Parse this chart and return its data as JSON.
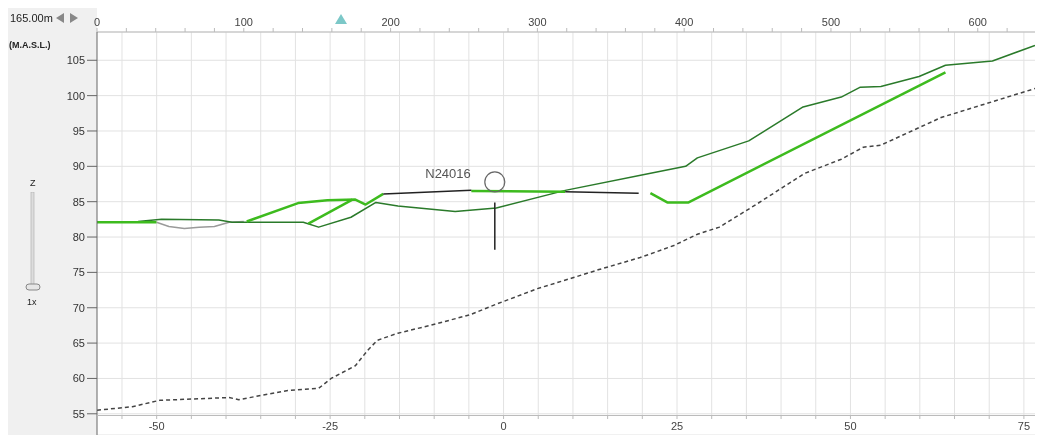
{
  "chart_data": {
    "type": "line",
    "ylabel": "(M.A.S.L.)",
    "xlim": [
      0,
      639
    ],
    "xticks": [
      0,
      {
        "value": 20,
        "label": null
      },
      {
        "value": 40,
        "label": null
      },
      {
        "value": 60,
        "label": null
      },
      {
        "value": 80,
        "label": null
      },
      100,
      {
        "value": 120,
        "label": null
      },
      {
        "value": 140,
        "label": null
      },
      {
        "value": 160,
        "label": null
      },
      {
        "value": 180,
        "label": null
      },
      200,
      {
        "value": 220,
        "label": null
      },
      {
        "value": 240,
        "label": null
      },
      {
        "value": 260,
        "label": null
      },
      {
        "value": 280,
        "label": null
      },
      300,
      {
        "value": 320,
        "label": null
      },
      {
        "value": 340,
        "label": null
      },
      {
        "value": 360,
        "label": null
      },
      {
        "value": 380,
        "label": null
      },
      400,
      {
        "value": 420,
        "label": null
      },
      {
        "value": 440,
        "label": null
      },
      {
        "value": 460,
        "label": null
      },
      {
        "value": 480,
        "label": null
      },
      500,
      {
        "value": 520,
        "label": null
      },
      {
        "value": 540,
        "label": null
      },
      {
        "value": 560,
        "label": null
      },
      {
        "value": 580,
        "label": null
      },
      600,
      {
        "value": 620,
        "label": null
      }
    ],
    "x2lim": [
      -58.6,
      76.6
    ],
    "x2ticks": [
      {
        "value": -55,
        "label": null
      },
      -50,
      {
        "value": -45,
        "label": null
      },
      {
        "value": -40,
        "label": null
      },
      {
        "value": -35,
        "label": null
      },
      {
        "value": -30,
        "label": null
      },
      -25,
      {
        "value": -20,
        "label": null
      },
      {
        "value": -15,
        "label": null
      },
      {
        "value": -10,
        "label": null
      },
      {
        "value": -5,
        "label": null
      },
      0,
      {
        "value": 5,
        "label": null
      },
      {
        "value": 10,
        "label": null
      },
      {
        "value": 15,
        "label": null
      },
      {
        "value": 20,
        "label": null
      },
      25,
      {
        "value": 30,
        "label": null
      },
      {
        "value": 35,
        "label": null
      },
      {
        "value": 40,
        "label": null
      },
      {
        "value": 45,
        "label": null
      },
      50,
      {
        "value": 55,
        "label": null
      },
      {
        "value": 60,
        "label": null
      },
      {
        "value": 65,
        "label": null
      },
      {
        "value": 70,
        "label": null
      },
      75
    ],
    "ylim": [
      52,
      109
    ],
    "yticks": [
      55,
      60,
      65,
      70,
      75,
      80,
      85,
      90,
      95,
      100,
      105
    ],
    "grid": true,
    "marker": "none",
    "annotations": [
      "165.00m",
      "Z",
      "1x",
      {
        "text": "N24016",
        "x": 271,
        "y": 87.8
      }
    ],
    "series": [
      {
        "type": "line",
        "color": "#444444",
        "line_style": "dashed",
        "x": [
          0,
          24,
          42.6,
          90,
          96.6,
          130,
          151,
          159.5,
          176,
          184.5,
          191,
          205,
          227,
          254,
          272,
          300,
          323.6,
          342,
          370,
          393,
          409,
          424,
          449,
          482,
          507,
          522,
          534,
          575,
          639
        ],
        "values": [
          55.5,
          56.0,
          56.9,
          57.3,
          57.0,
          58.3,
          58.6,
          60.0,
          61.8,
          64.0,
          65.4,
          66.4,
          67.5,
          69.0,
          70.5,
          72.7,
          74.2,
          75.4,
          77.1,
          78.8,
          80.4,
          81.4,
          84.6,
          89.0,
          91.0,
          92.7,
          93.0,
          96.9,
          101.0
        ]
      },
      {
        "type": "line",
        "color": "#9a9a9a",
        "line_style": "solid",
        "x": [
          40.5,
          49,
          59.5,
          69.6,
          80,
          90,
          100
        ],
        "values": [
          82.1,
          81.5,
          81.2,
          81.4,
          81.5,
          82.1,
          82.2
        ]
      },
      {
        "type": "line",
        "color": "#2a7a2a",
        "line_style": "solid",
        "x": [
          28,
          44,
          83,
          92,
          140.5,
          151,
          173,
          190,
          205,
          244,
          272,
          319,
          372,
          401,
          409,
          444,
          481,
          507,
          520,
          534,
          560,
          578,
          610,
          639
        ],
        "values": [
          82.2,
          82.5,
          82.4,
          82.1,
          82.1,
          81.4,
          82.8,
          84.9,
          84.4,
          83.6,
          84.1,
          86.6,
          88.8,
          90.0,
          91.2,
          93.6,
          98.4,
          99.8,
          101.2,
          101.3,
          102.7,
          104.3,
          104.9,
          107.1
        ]
      },
      {
        "type": "line",
        "color": "#3dbb1e",
        "line_style": "solid",
        "x": [
          0,
          40.5
        ],
        "values": [
          82.1,
          82.1
        ]
      },
      {
        "type": "line",
        "color": "#3dbb1e",
        "line_style": "solid",
        "x": [
          102,
          137,
          157,
          176,
          183,
          195
        ],
        "values": [
          82.2,
          84.8,
          85.2,
          85.3,
          84.6,
          86.1
        ]
      },
      {
        "type": "line",
        "color": "#3dbb1e",
        "line_style": "solid",
        "x": [
          144,
          174
        ],
        "values": [
          81.9,
          85.3
        ]
      },
      {
        "type": "line",
        "color": "#3dbb1e",
        "line_style": "solid",
        "x": [
          255,
          319
        ],
        "values": [
          86.5,
          86.4
        ]
      },
      {
        "type": "line",
        "color": "#3dbb1e",
        "line_style": "solid",
        "x": [
          377,
          388.5,
          403,
          578
        ],
        "values": [
          86.2,
          84.9,
          84.9,
          103.3
        ]
      },
      {
        "type": "line",
        "color": "#222222",
        "line_style": "solid",
        "x": [
          195,
          255
        ],
        "values": [
          86.1,
          86.6
        ]
      },
      {
        "type": "line",
        "color": "#222222",
        "line_style": "solid",
        "x": [
          319,
          369
        ],
        "values": [
          86.4,
          86.2
        ]
      },
      {
        "type": "line",
        "color": "#222222",
        "line_style": "solid",
        "x": [
          271,
          271
        ],
        "values": [
          84.9,
          78.2
        ]
      }
    ]
  }
}
